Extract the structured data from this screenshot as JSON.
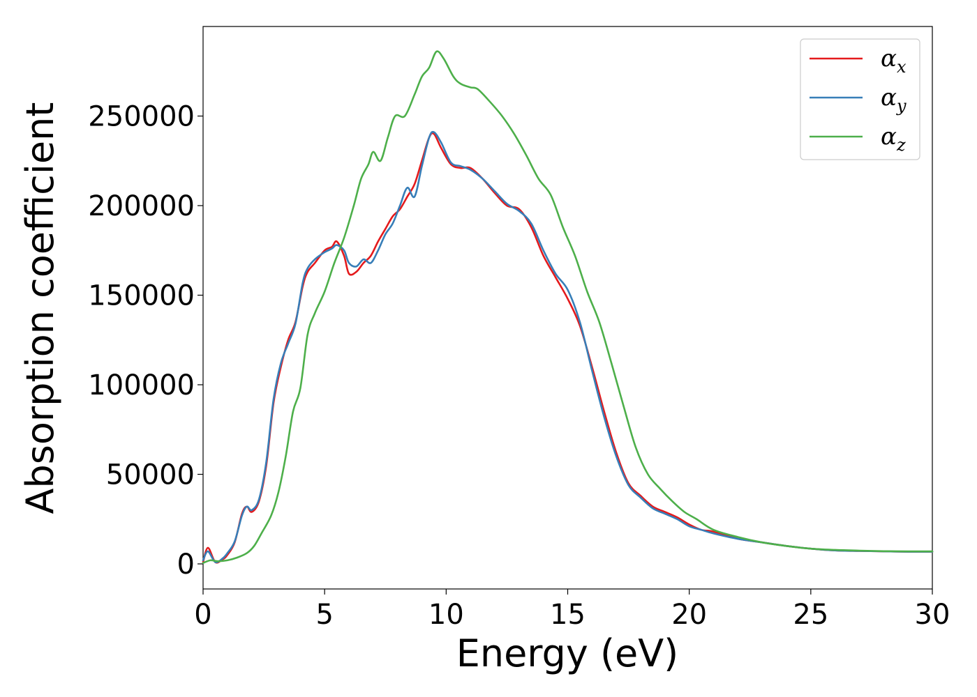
{
  "chart_data": {
    "type": "line",
    "title": "",
    "xlabel": "Energy (eV)",
    "ylabel": "Absorption coefficient",
    "xlim": [
      0,
      30
    ],
    "ylim": [
      -14000,
      300000
    ],
    "xticks": [
      0,
      5,
      10,
      15,
      20,
      25,
      30
    ],
    "yticks": [
      0,
      50000,
      100000,
      150000,
      200000,
      250000
    ],
    "grid": false,
    "legend_position": "top-right",
    "series": [
      {
        "name": "α",
        "sub": "x",
        "color": "#e41a1c",
        "x": [
          0,
          0.2,
          0.5,
          0.8,
          1.0,
          1.3,
          1.6,
          1.8,
          2.0,
          2.3,
          2.6,
          2.9,
          3.2,
          3.5,
          3.8,
          4.1,
          4.3,
          4.6,
          5.0,
          5.3,
          5.5,
          5.8,
          6.0,
          6.3,
          6.6,
          6.9,
          7.2,
          7.5,
          7.8,
          8.1,
          8.4,
          8.7,
          9.0,
          9.3,
          9.5,
          9.8,
          10.2,
          10.6,
          11.0,
          11.5,
          12.0,
          12.5,
          13.0,
          13.5,
          14.0,
          14.5,
          15.0,
          15.5,
          16.0,
          16.5,
          17.0,
          17.5,
          18.0,
          18.5,
          19.0,
          19.5,
          20.0,
          20.5,
          21.0,
          22.0,
          23.0,
          24.0,
          25.0,
          26.0,
          27.0,
          28.0,
          29.0,
          30.0
        ],
        "y": [
          1000,
          9000,
          1000,
          2500,
          5000,
          12000,
          28000,
          32000,
          29000,
          35000,
          55000,
          90000,
          110000,
          125000,
          135000,
          155000,
          163000,
          168000,
          175000,
          177000,
          180000,
          172000,
          162000,
          163000,
          168000,
          172000,
          180000,
          187000,
          194000,
          198000,
          205000,
          212000,
          225000,
          238000,
          240000,
          232000,
          223000,
          221000,
          221000,
          215000,
          207000,
          200000,
          198000,
          188000,
          172000,
          160000,
          148000,
          133000,
          110000,
          85000,
          62000,
          45000,
          38000,
          32000,
          29000,
          26000,
          22000,
          19000,
          18000,
          14000,
          12000,
          10000,
          8500,
          7500,
          7200,
          7000,
          6800,
          6800
        ]
      },
      {
        "name": "α",
        "sub": "y",
        "color": "#377eb8",
        "x": [
          0,
          0.2,
          0.5,
          0.8,
          1.0,
          1.3,
          1.6,
          1.8,
          2.0,
          2.3,
          2.6,
          2.9,
          3.2,
          3.5,
          3.8,
          4.1,
          4.3,
          4.6,
          5.0,
          5.3,
          5.5,
          5.8,
          6.0,
          6.3,
          6.6,
          6.9,
          7.2,
          7.5,
          7.8,
          8.1,
          8.4,
          8.7,
          9.0,
          9.3,
          9.5,
          9.8,
          10.2,
          10.6,
          11.0,
          11.5,
          12.0,
          12.5,
          13.0,
          13.5,
          14.0,
          14.5,
          15.0,
          15.5,
          16.0,
          16.5,
          17.0,
          17.5,
          18.0,
          18.5,
          19.0,
          19.5,
          20.0,
          20.5,
          21.0,
          22.0,
          23.0,
          24.0,
          25.0,
          26.0,
          27.0,
          28.0,
          29.0,
          30.0
        ],
        "y": [
          2000,
          7000,
          1000,
          3000,
          6000,
          12500,
          27000,
          32000,
          30000,
          36000,
          57000,
          92000,
          112000,
          123000,
          134000,
          157000,
          165000,
          170000,
          174000,
          176000,
          178000,
          175000,
          168000,
          166000,
          170000,
          168000,
          175000,
          184000,
          190000,
          200000,
          210000,
          205000,
          222000,
          238000,
          241000,
          235000,
          224000,
          222000,
          220000,
          215000,
          208000,
          201000,
          197000,
          190000,
          175000,
          162000,
          153000,
          135000,
          108000,
          82000,
          60000,
          44000,
          37000,
          31000,
          28000,
          25000,
          21000,
          19000,
          17000,
          14000,
          12000,
          10000,
          8500,
          7500,
          7200,
          7000,
          6800,
          6800
        ]
      },
      {
        "name": "α",
        "sub": "z",
        "color": "#4daf4a",
        "x": [
          0,
          0.3,
          0.6,
          1.0,
          1.4,
          1.8,
          2.1,
          2.4,
          2.8,
          3.1,
          3.4,
          3.7,
          4.0,
          4.3,
          4.6,
          5.0,
          5.4,
          5.8,
          6.2,
          6.5,
          6.8,
          7.0,
          7.3,
          7.6,
          7.9,
          8.3,
          8.7,
          9.0,
          9.3,
          9.6,
          9.9,
          10.3,
          10.6,
          11.0,
          11.3,
          11.8,
          12.3,
          12.8,
          13.3,
          13.8,
          14.3,
          14.8,
          15.3,
          15.8,
          16.3,
          16.8,
          17.3,
          17.8,
          18.3,
          18.8,
          19.3,
          19.8,
          20.3,
          21.0,
          22.0,
          23.0,
          24.0,
          25.0,
          26.0,
          27.0,
          28.0,
          29.0,
          30.0
        ],
        "y": [
          500,
          2000,
          1500,
          2000,
          3500,
          6000,
          10000,
          17000,
          27000,
          40000,
          60000,
          85000,
          98000,
          128000,
          140000,
          152000,
          168000,
          182000,
          200000,
          215000,
          223000,
          230000,
          225000,
          238000,
          250000,
          250000,
          262000,
          272000,
          277000,
          286000,
          282000,
          272000,
          268000,
          266000,
          265000,
          258000,
          250000,
          240000,
          228000,
          215000,
          206000,
          188000,
          172000,
          152000,
          135000,
          112000,
          88000,
          65000,
          50000,
          42000,
          35000,
          29000,
          25000,
          19000,
          15000,
          12000,
          10000,
          8500,
          7800,
          7400,
          7100,
          7000,
          7000
        ]
      }
    ]
  }
}
